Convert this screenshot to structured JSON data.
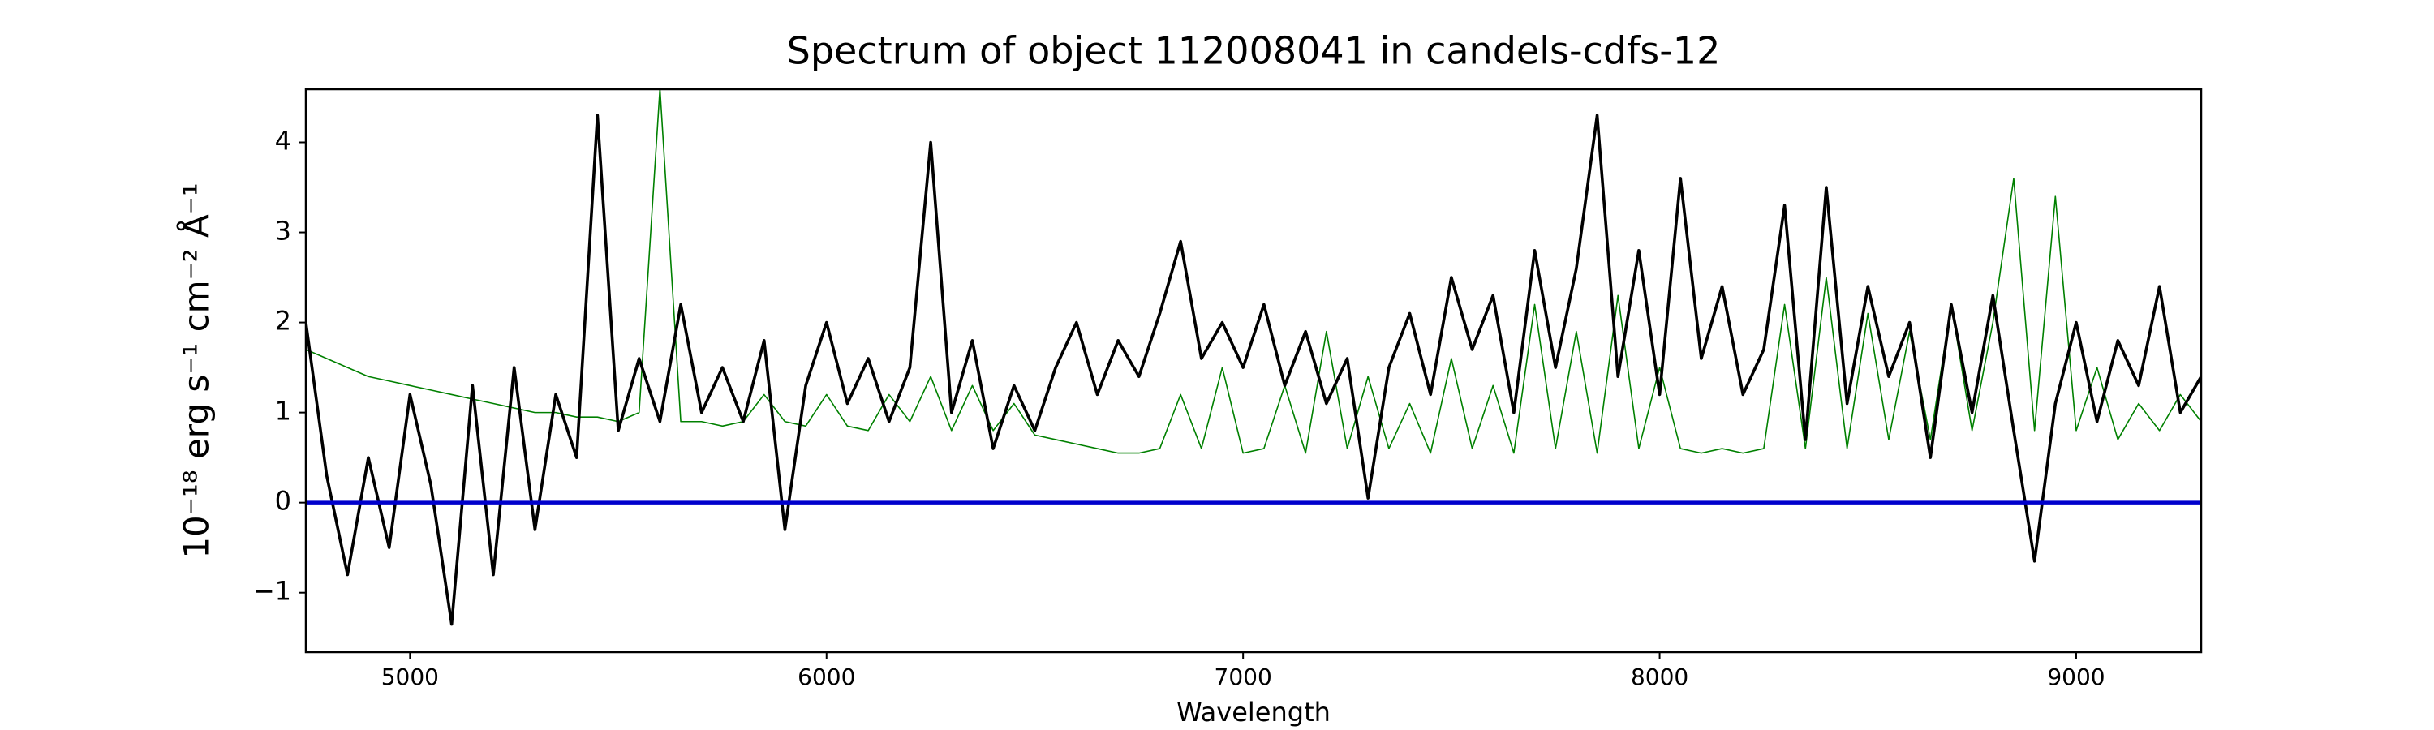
{
  "chart_data": {
    "type": "line",
    "title": "Spectrum of object 112008041 in candels-cdfs-12",
    "x_label": "Wavelength",
    "y_label": "10⁻¹⁸ erg s⁻¹ cm⁻² Å⁻¹",
    "x": [
      4750,
      4800,
      4850,
      4900,
      4950,
      5000,
      5050,
      5100,
      5150,
      5200,
      5250,
      5300,
      5350,
      5400,
      5450,
      5500,
      5550,
      5600,
      5650,
      5700,
      5750,
      5800,
      5850,
      5900,
      5950,
      6000,
      6050,
      6100,
      6150,
      6200,
      6250,
      6300,
      6350,
      6400,
      6450,
      6500,
      6550,
      6600,
      6650,
      6700,
      6750,
      6800,
      6850,
      6900,
      6950,
      7000,
      7050,
      7100,
      7150,
      7200,
      7250,
      7300,
      7350,
      7400,
      7450,
      7500,
      7550,
      7600,
      7650,
      7700,
      7750,
      7800,
      7850,
      7900,
      7950,
      8000,
      8050,
      8100,
      8150,
      8200,
      8250,
      8300,
      8350,
      8400,
      8450,
      8500,
      8550,
      8600,
      8650,
      8700,
      8750,
      8800,
      8850,
      8900,
      8950,
      9000,
      9050,
      9100,
      9150,
      9200,
      9250,
      9300
    ],
    "series": [
      {
        "color": "#008000",
        "values": [
          1.7,
          1.6,
          1.5,
          1.4,
          1.35,
          1.3,
          1.25,
          1.2,
          1.15,
          1.1,
          1.05,
          1.0,
          1.0,
          0.95,
          0.95,
          0.9,
          1.0,
          4.6,
          0.9,
          0.9,
          0.85,
          0.9,
          1.2,
          0.9,
          0.85,
          1.2,
          0.85,
          0.8,
          1.2,
          0.9,
          1.4,
          0.8,
          1.3,
          0.8,
          1.1,
          0.75,
          0.7,
          0.65,
          0.6,
          0.55,
          0.55,
          0.6,
          1.2,
          0.6,
          1.5,
          0.55,
          0.6,
          1.3,
          0.55,
          1.9,
          0.6,
          1.4,
          0.6,
          1.1,
          0.55,
          1.6,
          0.6,
          1.3,
          0.55,
          2.2,
          0.6,
          1.9,
          0.55,
          2.3,
          0.6,
          1.5,
          0.6,
          0.55,
          0.6,
          0.55,
          0.6,
          2.2,
          0.6,
          2.5,
          0.6,
          2.1,
          0.7,
          1.9,
          0.7,
          2.2,
          0.8,
          2.0,
          3.6,
          0.8,
          3.4,
          0.8,
          1.5,
          0.7,
          1.1,
          0.8,
          1.2,
          0.9
        ]
      },
      {
        "color": "#000000",
        "values": [
          2.0,
          0.3,
          -0.8,
          0.5,
          -0.5,
          1.2,
          0.2,
          -1.35,
          1.3,
          -0.8,
          1.5,
          -0.3,
          1.2,
          0.5,
          4.3,
          0.8,
          1.6,
          0.9,
          2.2,
          1.0,
          1.5,
          0.9,
          1.8,
          -0.3,
          1.3,
          2.0,
          1.1,
          1.6,
          0.9,
          1.5,
          4.0,
          1.0,
          1.8,
          0.6,
          1.3,
          0.8,
          1.5,
          2.0,
          1.2,
          1.8,
          1.4,
          2.1,
          2.9,
          1.6,
          2.0,
          1.5,
          2.2,
          1.3,
          1.9,
          1.1,
          1.6,
          0.05,
          1.5,
          2.1,
          1.2,
          2.5,
          1.7,
          2.3,
          1.0,
          2.8,
          1.5,
          2.6,
          4.3,
          1.4,
          2.8,
          1.2,
          3.6,
          1.6,
          2.4,
          1.2,
          1.7,
          3.3,
          0.7,
          3.5,
          1.1,
          2.4,
          1.4,
          2.0,
          0.5,
          2.2,
          1.0,
          2.3,
          0.8,
          -0.65,
          1.1,
          2.0,
          0.9,
          1.8,
          1.3,
          2.4,
          1.0,
          1.4
        ]
      }
    ],
    "hline": {
      "value": 0,
      "color": "#0000cc"
    },
    "xlim": [
      4750,
      9300
    ],
    "ylim": [
      -1.66,
      4.59
    ],
    "xticks": [
      5000,
      6000,
      7000,
      8000,
      9000
    ],
    "yticks": [
      {
        "value": -1,
        "label": "−1"
      },
      0,
      1,
      2,
      3,
      4
    ]
  }
}
